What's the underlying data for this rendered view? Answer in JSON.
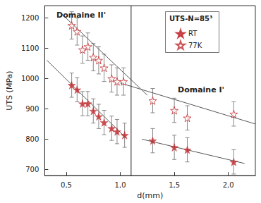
{
  "chart_data": {
    "type": "scatter",
    "x_label": "d(mm)",
    "y_label": "UTS (MPa)",
    "legend_title": "UTS-N=85³",
    "annotations": [
      "Domaine II'",
      "Domaine I'"
    ],
    "xlim": [
      0.3,
      2.25
    ],
    "xticks": [
      {
        "value": 0.5,
        "label": "0,5"
      },
      {
        "value": 1.0,
        "label": "1,0"
      },
      {
        "value": 1.5,
        "label": "1,5"
      },
      {
        "value": 2.0,
        "label": "2,0"
      }
    ],
    "ylim": [
      680,
      1240
    ],
    "yticks": [
      700,
      800,
      900,
      1000,
      1100,
      1200
    ],
    "legend": "upper right",
    "grid": false,
    "series": [
      {
        "name": "RT",
        "color": "#c0282d",
        "marker": "star",
        "x": [
          0.55,
          0.6,
          0.65,
          0.7,
          0.75,
          0.8,
          0.85,
          0.92,
          0.97,
          1.04,
          1.3,
          1.5,
          1.62,
          2.05
        ],
        "values": [
          978,
          963,
          917,
          917,
          893,
          875,
          855,
          836,
          825,
          813,
          795,
          773,
          765,
          725
        ],
        "errors": [
          40,
          40,
          40,
          40,
          40,
          40,
          40,
          40,
          40,
          40,
          40,
          40,
          40,
          40
        ]
      },
      {
        "name": "77K",
        "color": "#c0282d",
        "marker": "star-open",
        "x": [
          0.55,
          0.6,
          0.65,
          0.7,
          0.75,
          0.8,
          0.85,
          0.92,
          0.97,
          1.03,
          1.3,
          1.5,
          1.62,
          2.05
        ],
        "values": [
          1175,
          1155,
          1095,
          1105,
          1070,
          1060,
          1035,
          1000,
          990,
          990,
          927,
          895,
          870,
          883
        ],
        "errors": [
          45,
          45,
          45,
          45,
          45,
          45,
          45,
          45,
          45,
          45,
          40,
          40,
          40,
          40
        ]
      }
    ],
    "fit_lines": [
      {
        "x": [
          0.32,
          1.05
        ],
        "values": [
          1060,
          805
        ]
      },
      {
        "x": [
          1.2,
          2.15
        ],
        "values": [
          800,
          720
        ]
      },
      {
        "x": [
          0.45,
          1.25
        ],
        "values": [
          1215,
          945
        ]
      },
      {
        "x": [
          1.0,
          2.25
        ],
        "values": [
          985,
          850
        ]
      }
    ],
    "vline": 1.1
  }
}
